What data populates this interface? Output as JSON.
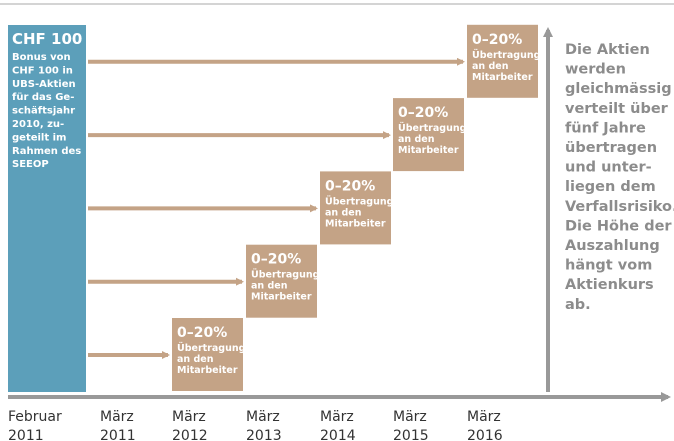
{
  "bonus": {
    "amount": "CHF 100",
    "lines": [
      "Bonus von",
      "CHF 100 in",
      "UBS-Aktien",
      "für das Ge-",
      "schäftsjahr",
      "2010, zu-",
      "geteilt im",
      "Rahmen des",
      "SEEOP"
    ]
  },
  "tranches": [
    {
      "percent": "0–20%",
      "lines": [
        "Übertragung",
        "an den",
        "Mitarbeiter"
      ]
    },
    {
      "percent": "0–20%",
      "lines": [
        "Übertragung",
        "an den",
        "Mitarbeiter"
      ]
    },
    {
      "percent": "0–20%",
      "lines": [
        "Übertragung",
        "an den",
        "Mitarbeiter"
      ]
    },
    {
      "percent": "0–20%",
      "lines": [
        "Übertragung",
        "an den",
        "Mitarbeiter"
      ]
    },
    {
      "percent": "0–20%",
      "lines": [
        "Übertragung",
        "an den",
        "Mitarbeiter"
      ]
    }
  ],
  "note": [
    "Die Aktien",
    "werden",
    "gleichmässig",
    "verteilt über",
    "fünf Jahre",
    "übertragen",
    "und unter-",
    "liegen dem",
    "Verfallsrisiko.",
    "Die Höhe der",
    "Auszahlung",
    "hängt vom",
    "Aktienkurs",
    "ab."
  ],
  "timeline": [
    {
      "month": "Februar",
      "year": "2011"
    },
    {
      "month": "März",
      "year": "2011"
    },
    {
      "month": "März",
      "year": "2012"
    },
    {
      "month": "März",
      "year": "2013"
    },
    {
      "month": "März",
      "year": "2014"
    },
    {
      "month": "März",
      "year": "2015"
    },
    {
      "month": "März",
      "year": "2016"
    }
  ]
}
